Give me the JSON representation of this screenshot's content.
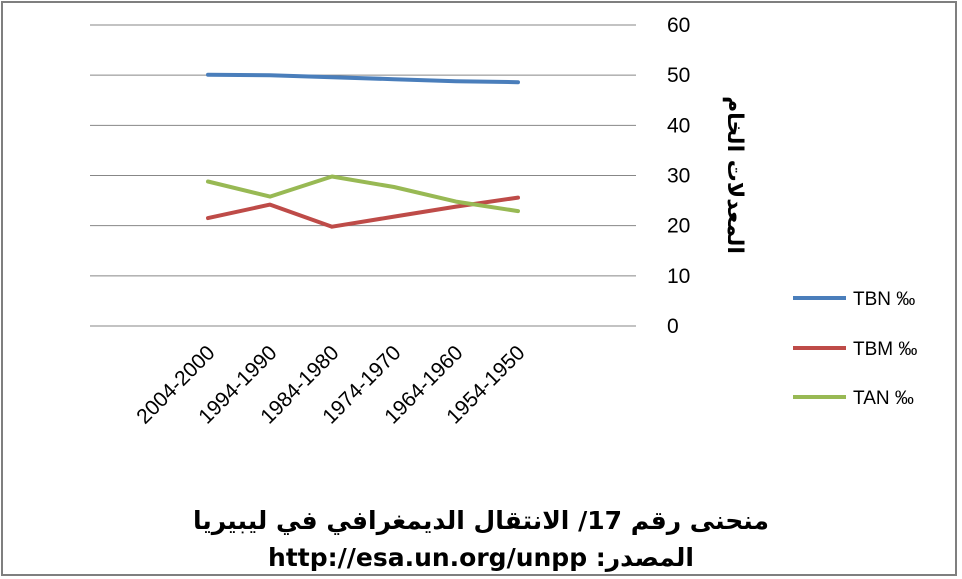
{
  "chart_data": {
    "type": "line",
    "categories": [
      "2004-2000",
      "1994-1990",
      "1984-1980",
      "1974-1970",
      "1964-1960",
      "1954-1950"
    ],
    "series": [
      {
        "name": "TBN ‰",
        "color": "#4a7ebb",
        "values": [
          50.1,
          50.0,
          49.6,
          49.2,
          48.8,
          48.6
        ]
      },
      {
        "name": "TBM ‰",
        "color": "#be4b48",
        "values": [
          21.5,
          24.2,
          19.8,
          21.8,
          23.8,
          25.6
        ]
      },
      {
        "name": "TAN ‰",
        "color": "#98b954",
        "values": [
          28.8,
          25.8,
          29.8,
          27.7,
          24.8,
          22.9
        ]
      }
    ],
    "ylabel": "المعدلات الخام",
    "ylim": [
      0,
      60
    ],
    "yticks": [
      "0",
      "10",
      "20",
      "30",
      "40",
      "50",
      "60"
    ],
    "y_axis_side": "right",
    "grid": true,
    "legend_position": "right"
  },
  "caption": {
    "title": "منحنى رقم 17/ الانتقال الديمغرافي في ليبيريا",
    "source": "المصدر: http://esa.un.org/unpp"
  }
}
